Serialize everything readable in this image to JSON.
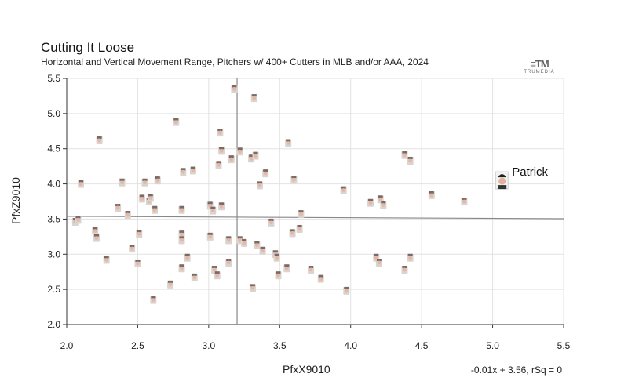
{
  "chart_data": {
    "type": "scatter",
    "title": "Cutting It Loose",
    "subtitle": "Horizontal and Vertical Movement Range, Pitchers w/ 400+ Cutters in MLB and/or AAA, 2024",
    "xlabel": "PfxX9010",
    "ylabel": "PfxZ9010",
    "xlim": [
      2.0,
      5.5
    ],
    "ylim": [
      2.0,
      5.5
    ],
    "x_ticks": [
      "2.0",
      "2.5",
      "3.0",
      "3.5",
      "4.0",
      "4.5",
      "5.0",
      "5.5"
    ],
    "y_ticks": [
      "2.0",
      "2.5",
      "3.0",
      "3.5",
      "4.0",
      "4.5",
      "5.0",
      "5.5"
    ],
    "grid": true,
    "reference_lines": {
      "x_mean": 3.2
    },
    "regression": {
      "slope": -0.01,
      "intercept": 3.56,
      "label": "-0.01x + 3.56, rSq = 0"
    },
    "highlight": {
      "name": "Patrick",
      "x": 5.07,
      "y": 4.05
    },
    "points": [
      {
        "x": 2.06,
        "y": 3.46
      },
      {
        "x": 2.08,
        "y": 3.49
      },
      {
        "x": 2.1,
        "y": 4.0
      },
      {
        "x": 2.2,
        "y": 3.33
      },
      {
        "x": 2.21,
        "y": 3.23
      },
      {
        "x": 2.23,
        "y": 4.62
      },
      {
        "x": 2.28,
        "y": 2.92
      },
      {
        "x": 2.36,
        "y": 3.66
      },
      {
        "x": 2.39,
        "y": 4.02
      },
      {
        "x": 2.43,
        "y": 3.56
      },
      {
        "x": 2.46,
        "y": 3.08
      },
      {
        "x": 2.5,
        "y": 2.87
      },
      {
        "x": 2.51,
        "y": 3.29
      },
      {
        "x": 2.53,
        "y": 3.79
      },
      {
        "x": 2.55,
        "y": 4.02
      },
      {
        "x": 2.58,
        "y": 3.75
      },
      {
        "x": 2.59,
        "y": 3.8
      },
      {
        "x": 2.62,
        "y": 3.63
      },
      {
        "x": 2.64,
        "y": 4.05
      },
      {
        "x": 2.61,
        "y": 2.35
      },
      {
        "x": 2.73,
        "y": 2.57
      },
      {
        "x": 2.77,
        "y": 4.88
      },
      {
        "x": 2.81,
        "y": 3.63
      },
      {
        "x": 2.81,
        "y": 3.28
      },
      {
        "x": 2.81,
        "y": 3.2
      },
      {
        "x": 2.82,
        "y": 4.17
      },
      {
        "x": 2.81,
        "y": 2.8
      },
      {
        "x": 2.85,
        "y": 2.95
      },
      {
        "x": 2.89,
        "y": 4.19
      },
      {
        "x": 2.9,
        "y": 2.67
      },
      {
        "x": 3.01,
        "y": 3.69
      },
      {
        "x": 3.01,
        "y": 3.25
      },
      {
        "x": 3.03,
        "y": 3.62
      },
      {
        "x": 3.04,
        "y": 2.78
      },
      {
        "x": 3.06,
        "y": 2.7
      },
      {
        "x": 3.07,
        "y": 4.27
      },
      {
        "x": 3.08,
        "y": 4.73
      },
      {
        "x": 3.09,
        "y": 4.47
      },
      {
        "x": 3.09,
        "y": 3.68
      },
      {
        "x": 3.14,
        "y": 2.88
      },
      {
        "x": 3.14,
        "y": 3.2
      },
      {
        "x": 3.16,
        "y": 4.35
      },
      {
        "x": 3.18,
        "y": 5.35
      },
      {
        "x": 3.22,
        "y": 4.46
      },
      {
        "x": 3.22,
        "y": 3.2
      },
      {
        "x": 3.25,
        "y": 3.16
      },
      {
        "x": 3.3,
        "y": 4.36
      },
      {
        "x": 3.31,
        "y": 2.52
      },
      {
        "x": 3.32,
        "y": 5.22
      },
      {
        "x": 3.33,
        "y": 4.4
      },
      {
        "x": 3.34,
        "y": 3.13
      },
      {
        "x": 3.36,
        "y": 3.98
      },
      {
        "x": 3.38,
        "y": 3.05
      },
      {
        "x": 3.4,
        "y": 4.15
      },
      {
        "x": 3.44,
        "y": 3.45
      },
      {
        "x": 3.47,
        "y": 3.0
      },
      {
        "x": 3.48,
        "y": 2.95
      },
      {
        "x": 3.49,
        "y": 2.7
      },
      {
        "x": 3.55,
        "y": 2.8
      },
      {
        "x": 3.56,
        "y": 4.58
      },
      {
        "x": 3.59,
        "y": 3.3
      },
      {
        "x": 3.6,
        "y": 4.06
      },
      {
        "x": 3.64,
        "y": 3.36
      },
      {
        "x": 3.65,
        "y": 3.57
      },
      {
        "x": 3.72,
        "y": 2.78
      },
      {
        "x": 3.79,
        "y": 2.65
      },
      {
        "x": 3.95,
        "y": 3.91
      },
      {
        "x": 3.97,
        "y": 2.48
      },
      {
        "x": 4.14,
        "y": 3.73
      },
      {
        "x": 4.18,
        "y": 2.95
      },
      {
        "x": 4.2,
        "y": 2.88
      },
      {
        "x": 4.21,
        "y": 3.78
      },
      {
        "x": 4.23,
        "y": 3.7
      },
      {
        "x": 4.38,
        "y": 4.41
      },
      {
        "x": 4.38,
        "y": 2.78
      },
      {
        "x": 4.42,
        "y": 4.33
      },
      {
        "x": 4.42,
        "y": 2.95
      },
      {
        "x": 4.57,
        "y": 3.84
      },
      {
        "x": 4.8,
        "y": 3.75
      }
    ]
  },
  "branding": {
    "logo_mark": "≡TM",
    "logo_word": "TRUMEDIA"
  }
}
